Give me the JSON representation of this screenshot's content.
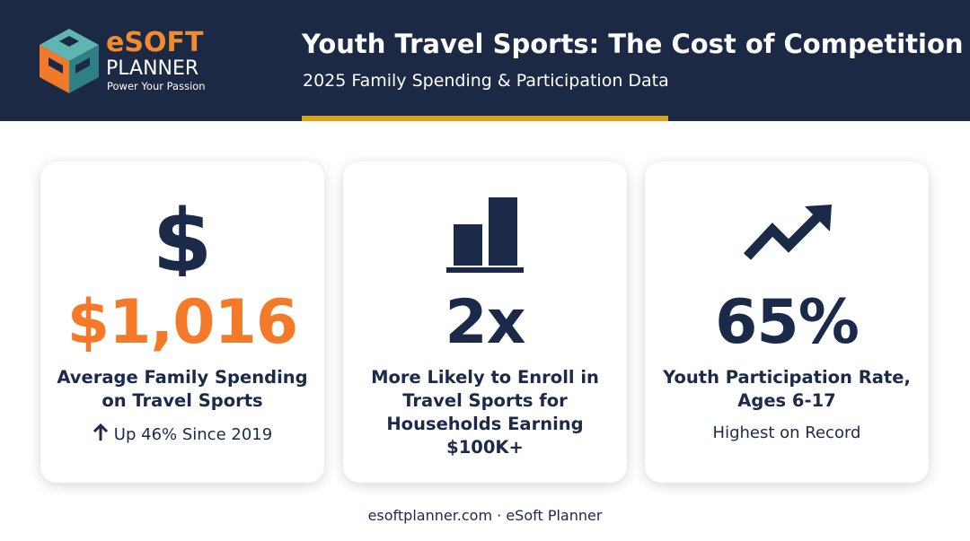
{
  "header": {
    "logo_name": "eSOFT",
    "logo_sub": "PLANNER",
    "tagline": "Power Your Passion",
    "title": "Youth Travel Sports: The Cost of Competition",
    "subtitle": "2025 Family Spending & Participation Data"
  },
  "cards": [
    {
      "value": "$1,016",
      "label": "Average Family Spending on Travel Sports",
      "note": "Up 46% Since 2019"
    },
    {
      "value": "2x",
      "label": "More Likely to Enroll in Travel Sports for Households Earning $100K+"
    },
    {
      "value": "65%",
      "label": "Youth Participation Rate, Ages 6-17",
      "note": "Highest on Record"
    }
  ],
  "footer": "esoftplanner.com · eSoft Planner"
}
